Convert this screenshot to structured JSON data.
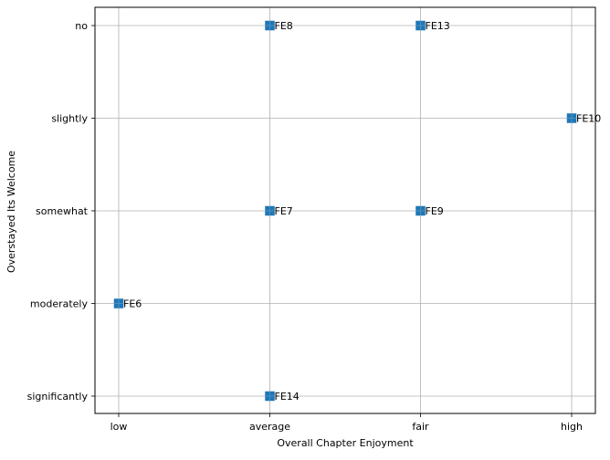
{
  "chart_data": {
    "type": "scatter",
    "title": "",
    "xlabel": "Overall Chapter Enjoyment",
    "ylabel": "Overstayed Its Welcome",
    "x_categories": [
      "low",
      "average",
      "fair",
      "high"
    ],
    "y_categories": [
      "significantly",
      "moderately",
      "somewhat",
      "slightly",
      "no"
    ],
    "grid": true,
    "legend": "none",
    "marker": "square",
    "point_color": "#1f77b4",
    "grid_color": "#b0b0b0",
    "points": [
      {
        "label": "FE8",
        "x": "average",
        "y": "no"
      },
      {
        "label": "FE13",
        "x": "fair",
        "y": "no"
      },
      {
        "label": "FE10",
        "x": "high",
        "y": "slightly"
      },
      {
        "label": "FE7",
        "x": "average",
        "y": "somewhat"
      },
      {
        "label": "FE9",
        "x": "fair",
        "y": "somewhat"
      },
      {
        "label": "FE6",
        "x": "low",
        "y": "moderately"
      },
      {
        "label": "FE14",
        "x": "average",
        "y": "significantly"
      }
    ]
  }
}
